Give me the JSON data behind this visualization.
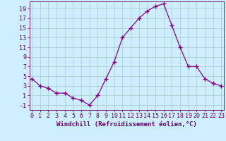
{
  "x": [
    0,
    1,
    2,
    3,
    4,
    5,
    6,
    7,
    8,
    9,
    10,
    11,
    12,
    13,
    14,
    15,
    16,
    17,
    18,
    19,
    20,
    21,
    22,
    23
  ],
  "y": [
    4.5,
    3.0,
    2.5,
    1.5,
    1.5,
    0.5,
    0.0,
    -1.0,
    1.0,
    4.5,
    8.0,
    13.0,
    15.0,
    17.0,
    18.5,
    19.5,
    20.0,
    15.5,
    11.0,
    7.0,
    7.0,
    4.5,
    3.5,
    3.0
  ],
  "line_color": "#880088",
  "marker": "+",
  "marker_size": 4,
  "bg_color": "#cceeff",
  "grid_color": "#aacccc",
  "xlabel": "Windchill (Refroidissement éolien,°C)",
  "yticks": [
    -1,
    1,
    3,
    5,
    7,
    9,
    11,
    13,
    15,
    17,
    19
  ],
  "xticks": [
    0,
    1,
    2,
    3,
    4,
    5,
    6,
    7,
    8,
    9,
    10,
    11,
    12,
    13,
    14,
    15,
    16,
    17,
    18,
    19,
    20,
    21,
    22,
    23
  ],
  "ylim": [
    -2.0,
    20.5
  ],
  "xlim": [
    -0.3,
    23.3
  ],
  "axis_color": "#660066",
  "label_fontsize": 6.5,
  "tick_fontsize": 6.0,
  "linewidth": 0.9,
  "markeredgewidth": 1.0
}
